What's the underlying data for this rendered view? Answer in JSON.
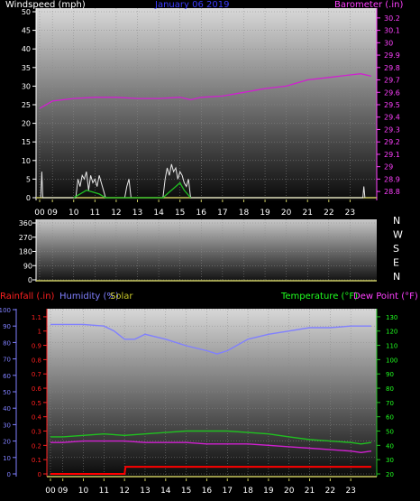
{
  "chart_data": [
    {
      "type": "line",
      "title": "January 06 2019",
      "left_label": "Windspeed (mph)",
      "right_label": "Barometer (.in)",
      "left_ticks": [
        0,
        5,
        10,
        15,
        20,
        25,
        30,
        35,
        40,
        45,
        50
      ],
      "right_ticks": [
        "28.8",
        "28.9",
        "29",
        "29.1",
        "29.2",
        "29.3",
        "29.4",
        "29.5",
        "29.6",
        "29.7",
        "29.8",
        "29.9",
        "30",
        "30.1",
        "30.2"
      ],
      "x_ticks": [
        "00",
        "09",
        "10",
        "11",
        "12",
        "13",
        "14",
        "15",
        "16",
        "17",
        "18",
        "19",
        "20",
        "21",
        "22",
        "23"
      ],
      "wind_ylim": [
        0,
        50
      ],
      "baro_ylim": [
        28.75,
        30.25
      ],
      "series": [
        {
          "role": "barometer",
          "color": "#d020d0",
          "x": [
            8.4,
            9,
            10,
            11,
            12,
            13,
            14,
            15,
            15.5,
            16,
            17,
            18,
            19,
            20,
            21,
            22,
            23,
            23.5,
            24
          ],
          "values": [
            29.47,
            29.53,
            29.55,
            29.56,
            29.56,
            29.55,
            29.55,
            29.56,
            29.54,
            29.56,
            29.57,
            29.6,
            29.63,
            29.65,
            29.7,
            29.72,
            29.74,
            29.75,
            29.73
          ]
        },
        {
          "role": "gust",
          "color": "#e8e8e8",
          "x": [
            8.45,
            8.5,
            8.55,
            8.6,
            10.1,
            10.2,
            10.3,
            10.4,
            10.5,
            10.6,
            10.7,
            10.8,
            10.9,
            11.0,
            11.1,
            11.2,
            11.3,
            11.4,
            11.5,
            12.4,
            12.5,
            12.6,
            12.7,
            14.2,
            14.3,
            14.4,
            14.5,
            14.6,
            14.7,
            14.8,
            14.9,
            15.0,
            15.1,
            15.2,
            15.3,
            15.4,
            15.5,
            23.6,
            23.65,
            23.7
          ],
          "values": [
            0,
            7,
            0,
            0,
            0,
            5,
            3,
            6,
            5,
            7,
            2,
            6,
            4,
            5,
            3,
            6,
            4,
            2,
            0,
            0,
            3,
            5,
            0,
            0,
            5,
            8,
            6,
            9,
            7,
            8,
            5,
            7,
            6,
            4,
            3,
            5,
            0,
            0,
            3,
            0
          ]
        },
        {
          "role": "wind",
          "color": "#20c020",
          "x": [
            10.0,
            10.3,
            10.6,
            10.9,
            11.2,
            11.5,
            14.2,
            14.5,
            14.8,
            15.0,
            15.2,
            15.5
          ],
          "values": [
            0,
            1,
            2,
            1.5,
            1,
            0,
            0,
            1.5,
            3,
            4,
            2,
            0
          ]
        }
      ]
    },
    {
      "type": "scatter",
      "title": "",
      "left_ticks": [
        0,
        90,
        180,
        270,
        360
      ],
      "compass": [
        "N",
        "W",
        "S",
        "E",
        "N"
      ],
      "ylim": [
        0,
        360
      ],
      "values": []
    },
    {
      "type": "line",
      "labels": {
        "rainfall": "Rainfall (.in)",
        "humidity": "Humidity (%)",
        "solar": "Solar",
        "temperature": "Temperature (°F)",
        "dewpoint": "Dew Point (°F)"
      },
      "humidity_ticks": [
        0,
        10,
        20,
        30,
        40,
        50,
        60,
        70,
        80,
        90,
        100
      ],
      "rain_ticks": [
        "0",
        "0.1",
        "0.2",
        "0.3",
        "0.4",
        "0.5",
        "0.6",
        "0.7",
        "0.8",
        "0.9",
        "1",
        "1.1"
      ],
      "temp_ticks": [
        20,
        30,
        40,
        50,
        60,
        70,
        80,
        90,
        100,
        110,
        120,
        130
      ],
      "x_ticks": [
        "00",
        "09",
        "10",
        "11",
        "12",
        "13",
        "14",
        "15",
        "16",
        "17",
        "18",
        "19",
        "20",
        "21",
        "22",
        "23"
      ],
      "humidity_ylim": [
        0,
        100
      ],
      "rain_ylim": [
        0,
        1.15
      ],
      "temp_ylim": [
        20,
        135
      ],
      "series": [
        {
          "role": "humidity",
          "color": "#8080ff",
          "x": [
            8.4,
            9,
            10,
            11,
            11.5,
            12,
            12.5,
            13,
            14,
            15,
            16,
            16.5,
            17,
            18,
            19,
            20,
            21,
            22,
            23,
            24
          ],
          "values": [
            91,
            91,
            91,
            90,
            87,
            82,
            82,
            85,
            82,
            78,
            75,
            73,
            75,
            82,
            85,
            87,
            89,
            89,
            90,
            90
          ]
        },
        {
          "role": "temperature",
          "color": "#20c020",
          "x": [
            8.4,
            9,
            10,
            11,
            12,
            13,
            14,
            15,
            16,
            17,
            18,
            19,
            20,
            21,
            22,
            23,
            23.5,
            24
          ],
          "values": [
            46,
            46,
            47,
            48,
            47,
            48,
            49,
            50,
            50,
            50,
            49,
            48,
            46,
            44,
            43,
            42,
            41,
            42
          ]
        },
        {
          "role": "dewpoint",
          "color": "#d020d0",
          "x": [
            8.4,
            9,
            10,
            11,
            12,
            13,
            14,
            15,
            16,
            17,
            18,
            19,
            20,
            21,
            22,
            23,
            23.5,
            24
          ],
          "values": [
            42,
            42,
            43,
            43,
            43,
            42,
            42,
            42,
            41,
            41,
            41,
            40,
            39,
            38,
            37,
            36,
            35,
            36
          ]
        },
        {
          "role": "rainfall",
          "color": "#ff0000",
          "x": [
            8.4,
            9,
            10,
            11,
            12,
            12.05,
            13,
            14,
            15,
            16,
            17,
            18,
            19,
            20,
            21,
            22,
            23,
            24
          ],
          "values": [
            0,
            0,
            0,
            0,
            0,
            0.05,
            0.05,
            0.05,
            0.05,
            0.05,
            0.05,
            0.05,
            0.05,
            0.05,
            0.05,
            0.05,
            0.05,
            0.05
          ]
        }
      ]
    }
  ]
}
